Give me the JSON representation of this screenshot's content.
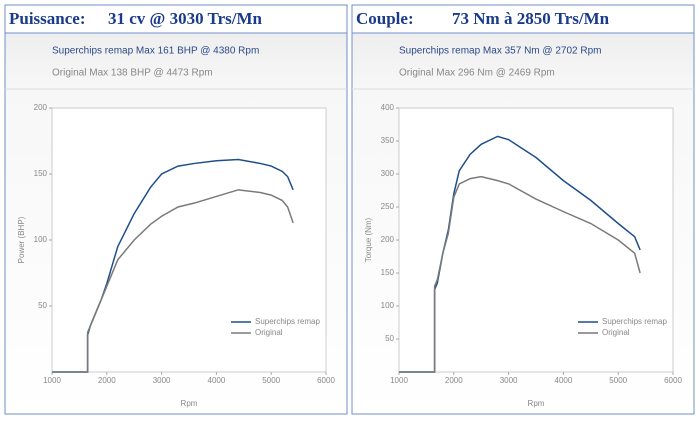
{
  "headers": [
    {
      "label": "Puissance:",
      "value": "31 cv @ 3030 Trs/Mn"
    },
    {
      "label": "Couple:",
      "value": "73  Nm à 2850 Trs/Mn"
    }
  ],
  "chart_data": [
    {
      "type": "line",
      "subtitles": [
        "Superchips remap Max 161 BHP @ 4380 Rpm",
        "Original Max 138 BHP @ 4473 Rpm"
      ],
      "x_label": "Rpm",
      "y_label": "Power (BHP)",
      "x": [
        1000,
        1650,
        1650,
        1700,
        1800,
        1900,
        2000,
        2200,
        2500,
        2800,
        3000,
        3300,
        3600,
        4000,
        4400,
        4800,
        5000,
        5200,
        5300,
        5400
      ],
      "series": [
        {
          "name": "Superchips remap",
          "color": "#1f4e8c",
          "values": [
            0,
            0,
            28,
            35,
            45,
            55,
            67,
            95,
            120,
            140,
            150,
            156,
            158,
            160,
            161,
            158,
            156,
            152,
            148,
            138
          ]
        },
        {
          "name": "Original",
          "color": "#7a7a7a",
          "values": [
            0,
            0,
            30,
            35,
            45,
            55,
            65,
            85,
            100,
            112,
            118,
            125,
            128,
            133,
            138,
            136,
            134,
            130,
            125,
            113
          ]
        }
      ],
      "xlim": [
        1000,
        6000
      ],
      "xticks": [
        1000,
        2000,
        3000,
        4000,
        5000,
        6000
      ],
      "ylim": [
        0,
        200
      ],
      "yticks": [
        50,
        100,
        150,
        200
      ],
      "legend": "lower-right"
    },
    {
      "type": "line",
      "subtitles": [
        "Superchips remap Max 357 Nm @ 2702 Rpm",
        "Original Max 296 Nm @ 2469 Rpm"
      ],
      "x_label": "Rpm",
      "y_label": "Torque (Nm)",
      "x": [
        1000,
        1650,
        1650,
        1700,
        1800,
        1900,
        2000,
        2100,
        2300,
        2500,
        2800,
        3000,
        3500,
        4000,
        4500,
        5000,
        5300,
        5400
      ],
      "series": [
        {
          "name": "Superchips remap",
          "color": "#1f4e8c",
          "values": [
            0,
            0,
            125,
            135,
            180,
            215,
            270,
            305,
            330,
            345,
            357,
            352,
            325,
            290,
            260,
            225,
            205,
            185
          ]
        },
        {
          "name": "Original",
          "color": "#7a7a7a",
          "values": [
            0,
            0,
            130,
            140,
            180,
            210,
            265,
            285,
            293,
            296,
            290,
            285,
            262,
            243,
            225,
            200,
            180,
            150
          ]
        }
      ],
      "xlim": [
        1000,
        6000
      ],
      "xticks": [
        1000,
        2000,
        3000,
        4000,
        5000,
        6000
      ],
      "ylim": [
        0,
        400
      ],
      "yticks": [
        50,
        100,
        150,
        200,
        250,
        300,
        350,
        400
      ],
      "legend": "lower-right"
    }
  ]
}
